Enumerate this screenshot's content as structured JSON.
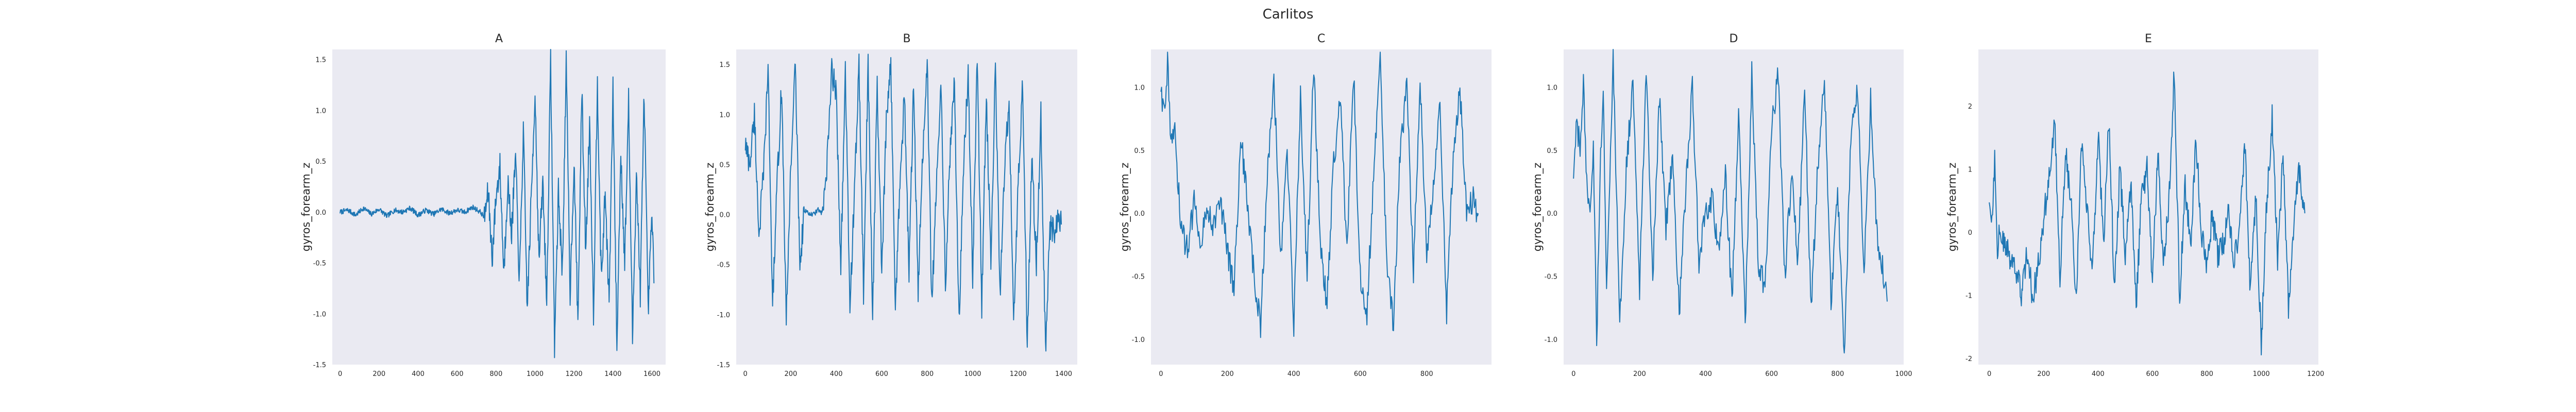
{
  "figure": {
    "title": "Carlitos",
    "background": "#ffffff",
    "axes_background": "#eaeaf2",
    "line_color": "#1f77b4"
  },
  "chart_data": [
    {
      "type": "line",
      "title": "A",
      "xlabel": "",
      "ylabel": "gyros_forearm_z",
      "xlim": [
        -40,
        1670
      ],
      "ylim": [
        -1.5,
        1.6
      ],
      "xticks": [
        0,
        200,
        400,
        600,
        800,
        1000,
        1200,
        1400,
        1600
      ],
      "yticks": [
        -1.5,
        -1.0,
        -0.5,
        0.0,
        0.5,
        1.0,
        1.5
      ],
      "ytick_labels": [
        "-1.5",
        "-1.0",
        "-0.5",
        "0.0",
        "0.5",
        "1.0",
        "1.5"
      ],
      "grid": false,
      "n": 1610,
      "x": [
        0,
        40,
        80,
        120,
        160,
        200,
        240,
        280,
        320,
        360,
        400,
        440,
        480,
        520,
        560,
        600,
        640,
        680,
        720,
        740,
        760,
        780,
        800,
        820,
        840,
        860,
        880,
        900,
        920,
        940,
        960,
        980,
        1000,
        1020,
        1040,
        1060,
        1080,
        1100,
        1120,
        1140,
        1160,
        1180,
        1200,
        1220,
        1240,
        1260,
        1280,
        1300,
        1320,
        1340,
        1360,
        1380,
        1400,
        1420,
        1440,
        1460,
        1480,
        1500,
        1520,
        1540,
        1560,
        1580,
        1600,
        1610
      ],
      "values": [
        0.0,
        0.02,
        -0.03,
        0.04,
        -0.02,
        0.03,
        -0.04,
        0.02,
        0.0,
        0.04,
        -0.03,
        0.02,
        -0.02,
        0.03,
        -0.01,
        0.02,
        0.0,
        0.05,
        0.0,
        -0.05,
        0.2,
        -0.45,
        0.15,
        0.45,
        -0.6,
        0.3,
        -0.2,
        0.55,
        -0.7,
        0.8,
        -0.95,
        0.1,
        1.2,
        -0.5,
        0.3,
        -0.9,
        1.5,
        -1.3,
        0.2,
        -0.6,
        1.45,
        -0.8,
        0.5,
        -1.1,
        1.2,
        -0.4,
        0.9,
        -1.0,
        1.3,
        -0.7,
        0.2,
        -0.9,
        1.2,
        -1.35,
        0.6,
        -0.5,
        1.1,
        -1.25,
        0.4,
        -0.8,
        1.2,
        -1.0,
        0.0,
        -0.7
      ]
    },
    {
      "type": "line",
      "title": "B",
      "xlabel": "",
      "ylabel": "gyros_forearm_z",
      "xlim": [
        -40,
        1460
      ],
      "ylim": [
        -1.5,
        1.65
      ],
      "xticks": [
        0,
        200,
        400,
        600,
        800,
        1000,
        1200,
        1400
      ],
      "yticks": [
        -1.5,
        -1.0,
        -0.5,
        0.0,
        0.5,
        1.0,
        1.5
      ],
      "ytick_labels": [
        "-1.5",
        "-1.0",
        "-0.5",
        "0.0",
        "0.5",
        "1.0",
        "1.5"
      ],
      "grid": false,
      "n": 1390,
      "x": [
        0,
        20,
        40,
        60,
        80,
        100,
        120,
        140,
        160,
        180,
        200,
        220,
        240,
        260,
        280,
        300,
        320,
        340,
        360,
        380,
        400,
        420,
        440,
        460,
        480,
        500,
        520,
        540,
        560,
        580,
        600,
        620,
        640,
        660,
        680,
        700,
        720,
        740,
        760,
        780,
        800,
        820,
        840,
        860,
        880,
        900,
        920,
        940,
        960,
        980,
        1000,
        1020,
        1040,
        1060,
        1080,
        1100,
        1120,
        1140,
        1160,
        1180,
        1200,
        1220,
        1240,
        1260,
        1280,
        1300,
        1320,
        1340,
        1360,
        1380,
        1390
      ],
      "values": [
        0.7,
        0.5,
        1.0,
        -0.2,
        0.4,
        1.45,
        -0.9,
        0.3,
        1.3,
        -1.1,
        0.5,
        1.5,
        -0.5,
        0.05,
        0.0,
        0.0,
        0.05,
        0.0,
        0.5,
        1.45,
        1.2,
        -0.5,
        1.4,
        -0.9,
        0.2,
        1.5,
        -0.8,
        1.5,
        -1.0,
        1.3,
        -0.6,
        0.9,
        1.5,
        -0.9,
        0.3,
        1.2,
        -0.6,
        1.3,
        -0.8,
        0.6,
        1.5,
        -0.9,
        0.2,
        1.4,
        -0.7,
        0.6,
        1.3,
        -1.1,
        0.5,
        1.4,
        -0.6,
        1.55,
        -0.9,
        1.2,
        -0.5,
        1.5,
        -0.8,
        0.4,
        1.2,
        -1.1,
        0.3,
        1.3,
        -1.3,
        0.6,
        -0.5,
        1.0,
        -1.35,
        -0.1,
        -0.2,
        0.0,
        -0.1
      ]
    },
    {
      "type": "line",
      "title": "C",
      "xlabel": "",
      "ylabel": "gyros_forearm_z",
      "xlim": [
        -30,
        995
      ],
      "ylim": [
        -1.2,
        1.3
      ],
      "xticks": [
        0,
        200,
        400,
        600,
        800
      ],
      "yticks": [
        -1.0,
        -0.5,
        0.0,
        0.5,
        1.0
      ],
      "ytick_labels": [
        "-1.0",
        "-0.5",
        "0.0",
        "0.5",
        "1.0"
      ],
      "grid": false,
      "n": 955,
      "x": [
        0,
        10,
        20,
        30,
        40,
        60,
        80,
        100,
        120,
        140,
        160,
        180,
        200,
        220,
        240,
        260,
        280,
        300,
        320,
        340,
        360,
        380,
        400,
        420,
        440,
        460,
        480,
        500,
        520,
        540,
        560,
        580,
        600,
        620,
        640,
        660,
        680,
        700,
        720,
        740,
        760,
        780,
        800,
        820,
        840,
        860,
        880,
        900,
        920,
        940,
        955
      ],
      "values": [
        1.0,
        0.8,
        1.2,
        0.5,
        0.7,
        -0.1,
        -0.3,
        0.1,
        -0.2,
        0.05,
        -0.1,
        0.1,
        -0.3,
        -0.6,
        0.6,
        0.1,
        -0.5,
        -0.9,
        0.3,
        1.1,
        -0.4,
        0.5,
        -0.9,
        0.9,
        -0.5,
        1.2,
        -0.3,
        -0.7,
        0.4,
        0.9,
        -0.3,
        1.1,
        -0.5,
        -0.8,
        0.3,
        1.2,
        -0.4,
        -0.9,
        0.5,
        1.0,
        -0.5,
        1.1,
        -0.3,
        0.2,
        0.9,
        -0.8,
        0.5,
        1.0,
        0.0,
        0.1,
        0.0
      ]
    },
    {
      "type": "line",
      "title": "D",
      "xlabel": "",
      "ylabel": "gyros_forearm_z",
      "xlim": [
        -30,
        1000
      ],
      "ylim": [
        -1.2,
        1.3
      ],
      "xticks": [
        0,
        200,
        400,
        600,
        800,
        1000
      ],
      "yticks": [
        -1.0,
        -0.5,
        0.0,
        0.5,
        1.0
      ],
      "ytick_labels": [
        "-1.0",
        "-0.5",
        "0.0",
        "0.5",
        "1.0"
      ],
      "grid": false,
      "n": 950,
      "x": [
        0,
        10,
        20,
        30,
        40,
        50,
        60,
        70,
        80,
        90,
        100,
        120,
        140,
        160,
        180,
        200,
        220,
        240,
        260,
        280,
        300,
        320,
        340,
        360,
        380,
        400,
        420,
        440,
        460,
        480,
        500,
        520,
        540,
        560,
        580,
        600,
        620,
        640,
        660,
        680,
        700,
        720,
        740,
        760,
        780,
        800,
        820,
        840,
        860,
        880,
        900,
        920,
        940,
        950
      ],
      "values": [
        0.3,
        0.7,
        0.5,
        1.0,
        0.2,
        -0.1,
        0.6,
        -1.1,
        0.3,
        0.9,
        -0.5,
        1.2,
        -0.9,
        0.4,
        1.0,
        -0.6,
        1.2,
        -0.5,
        0.9,
        -0.1,
        0.5,
        -0.8,
        0.2,
        1.0,
        -0.4,
        0.0,
        0.1,
        -0.3,
        0.3,
        -0.7,
        0.8,
        -0.9,
        1.1,
        -0.4,
        -0.6,
        0.7,
        1.1,
        -0.5,
        0.3,
        -0.4,
        1.0,
        -0.8,
        0.4,
        1.1,
        -0.7,
        0.2,
        -1.15,
        0.6,
        1.0,
        -0.5,
        0.9,
        -0.2,
        -0.5,
        -0.7
      ]
    },
    {
      "type": "line",
      "title": "E",
      "xlabel": "",
      "ylabel": "gyros_forearm_z",
      "xlim": [
        -40,
        1210
      ],
      "ylim": [
        -2.1,
        2.9
      ],
      "xticks": [
        0,
        200,
        400,
        600,
        800,
        1000,
        1200
      ],
      "yticks": [
        -2,
        -1,
        0,
        1,
        2
      ],
      "ytick_labels": [
        "-2",
        "-1",
        "0",
        "1",
        "2"
      ],
      "grid": false,
      "n": 1160,
      "x": [
        0,
        10,
        20,
        30,
        40,
        60,
        80,
        100,
        120,
        140,
        160,
        180,
        200,
        220,
        240,
        260,
        280,
        300,
        320,
        340,
        360,
        380,
        400,
        420,
        440,
        460,
        480,
        500,
        520,
        540,
        560,
        580,
        600,
        620,
        640,
        660,
        680,
        700,
        720,
        740,
        760,
        780,
        800,
        820,
        840,
        860,
        880,
        900,
        920,
        940,
        960,
        980,
        1000,
        1020,
        1040,
        1060,
        1080,
        1100,
        1120,
        1140,
        1160
      ],
      "values": [
        0.5,
        0.2,
        1.2,
        -0.2,
        0.0,
        -0.3,
        -0.4,
        -0.7,
        -1.0,
        -0.3,
        -1.1,
        -0.5,
        0.2,
        0.9,
        1.8,
        -0.8,
        1.3,
        0.5,
        -1.1,
        1.5,
        0.3,
        -0.6,
        1.6,
        -0.2,
        1.8,
        -0.9,
        1.0,
        -0.3,
        0.8,
        -1.2,
        0.6,
        1.0,
        -0.8,
        1.3,
        -0.5,
        0.4,
        2.6,
        -1.1,
        0.8,
        -0.3,
        1.5,
        0.0,
        -0.6,
        0.3,
        -0.4,
        -0.2,
        0.3,
        -0.5,
        0.1,
        1.4,
        -1.0,
        0.6,
        -1.8,
        0.5,
        1.8,
        -0.4,
        1.2,
        -1.2,
        0.2,
        1.0,
        0.3
      ]
    }
  ]
}
